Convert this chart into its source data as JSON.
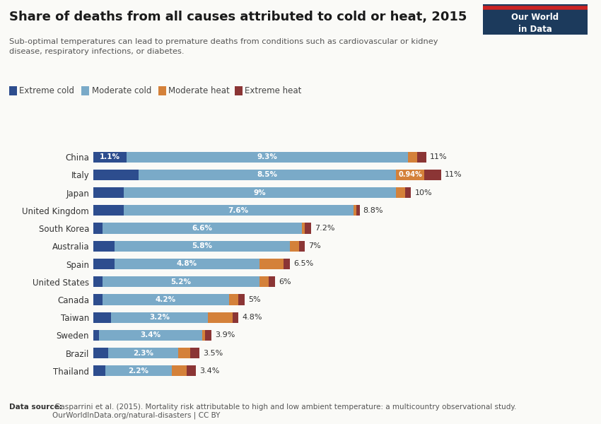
{
  "title": "Share of deaths from all causes attributed to cold or heat, 2015",
  "subtitle": "Sub-optimal temperatures can lead to premature deaths from conditions such as cardiovascular or kidney\ndisease, respiratory infections, or diabetes.",
  "footnote_bold": "Data source:",
  "footnote": " Gasparrini et al. (2015). Mortality risk attributable to high and low ambient temperature: a multicountry observational study.\nOurWorldInData.org/natural-disasters | CC BY",
  "categories": [
    "China",
    "Italy",
    "Japan",
    "United Kingdom",
    "South Korea",
    "Australia",
    "Spain",
    "United States",
    "Canada",
    "Taiwan",
    "Sweden",
    "Brazil",
    "Thailand"
  ],
  "extreme_cold": [
    1.1,
    1.5,
    1.0,
    1.0,
    0.3,
    0.7,
    0.7,
    0.3,
    0.3,
    0.6,
    0.2,
    0.5,
    0.4
  ],
  "moderate_cold": [
    9.3,
    8.5,
    9.0,
    7.6,
    6.6,
    5.8,
    4.8,
    5.2,
    4.2,
    3.2,
    3.4,
    2.3,
    2.2
  ],
  "moderate_heat": [
    0.3,
    0.94,
    0.3,
    0.1,
    0.1,
    0.3,
    0.8,
    0.3,
    0.3,
    0.8,
    0.1,
    0.4,
    0.5
  ],
  "extreme_heat": [
    0.3,
    0.56,
    0.2,
    0.1,
    0.2,
    0.2,
    0.2,
    0.2,
    0.2,
    0.2,
    0.2,
    0.3,
    0.3
  ],
  "total_labels": [
    "11%",
    "11%",
    "10%",
    "8.8%",
    "7.2%",
    "7%",
    "6.5%",
    "6%",
    "5%",
    "4.8%",
    "3.9%",
    "3.5%",
    "3.4%"
  ],
  "moderate_cold_labels": [
    "9.3%",
    "8.5%",
    "9%",
    "7.6%",
    "6.6%",
    "5.8%",
    "4.8%",
    "5.2%",
    "4.2%",
    "3.2%",
    "3.4%",
    "2.3%",
    "2.2%"
  ],
  "extreme_cold_labels": [
    "1.1%",
    "",
    "",
    "",
    "",
    "",
    "",
    "",
    "",
    "",
    "",
    "",
    ""
  ],
  "moderate_heat_labels": [
    "",
    "0.94%",
    "",
    "",
    "",
    "",
    "",
    "",
    "",
    "",
    "",
    "",
    ""
  ],
  "color_extreme_cold": "#2d4d8e",
  "color_moderate_cold": "#7aaac8",
  "color_moderate_heat": "#d4813a",
  "color_extreme_heat": "#8b3535",
  "background_color": "#fafaf7",
  "bar_height": 0.6
}
